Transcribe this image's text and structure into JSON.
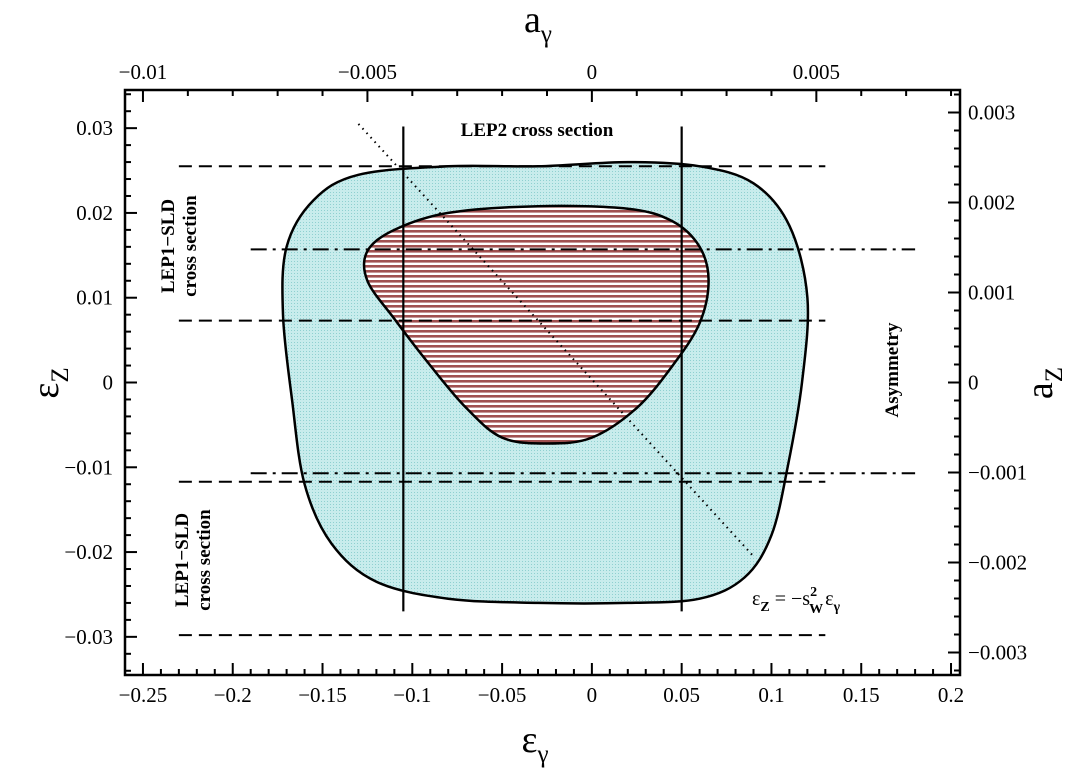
{
  "chart_data": {
    "type": "area",
    "axes": {
      "bottom": {
        "var": "ε",
        "sub": "γ",
        "range": [
          -0.26,
          0.205
        ],
        "ticks": [
          -0.25,
          -0.2,
          -0.15,
          -0.1,
          -0.05,
          0,
          0.05,
          0.1,
          0.15,
          0.2
        ],
        "tick_labels": [
          "−0.25",
          "−0.2",
          "−0.15",
          "−0.1",
          "−0.05",
          "0",
          "0.05",
          "0.1",
          "0.15",
          "0.2"
        ]
      },
      "left": {
        "var": "ε",
        "sub": "Z",
        "range": [
          -0.0345,
          0.0345
        ],
        "ticks": [
          -0.03,
          -0.02,
          -0.01,
          0,
          0.01,
          0.02,
          0.03
        ],
        "tick_labels": [
          "−0.03",
          "−0.02",
          "−0.01",
          "0",
          "0.01",
          "0.02",
          "0.03"
        ]
      },
      "top": {
        "var": "a",
        "sub": "γ",
        "range": [
          -0.0104,
          0.0082
        ],
        "ticks": [
          -0.01,
          -0.005,
          0,
          0.005
        ],
        "tick_labels": [
          "−0.01",
          "−0.005",
          "0",
          "0.005"
        ]
      },
      "right": {
        "var": "a",
        "sub": "Z",
        "range": [
          -0.00325,
          0.00325
        ],
        "ticks": [
          -0.003,
          -0.002,
          -0.001,
          0,
          0.001,
          0.002,
          0.003
        ],
        "tick_labels": [
          "−0.003",
          "−0.002",
          "−0.001",
          "0",
          "0.001",
          "0.002",
          "0.003"
        ]
      }
    },
    "regions": [
      {
        "name": "outer",
        "fill": "#c8ecec",
        "points": [
          [
            -0.03,
            0.0255
          ],
          [
            0.02,
            0.026
          ],
          [
            0.06,
            0.0255
          ],
          [
            0.09,
            0.0235
          ],
          [
            0.11,
            0.0185
          ],
          [
            0.12,
            0.01
          ],
          [
            0.117,
            0.0
          ],
          [
            0.109,
            -0.01
          ],
          [
            0.1,
            -0.018
          ],
          [
            0.085,
            -0.023
          ],
          [
            0.06,
            -0.0255
          ],
          [
            0.02,
            -0.026
          ],
          [
            -0.03,
            -0.026
          ],
          [
            -0.08,
            -0.0255
          ],
          [
            -0.12,
            -0.0235
          ],
          [
            -0.145,
            -0.019
          ],
          [
            -0.16,
            -0.012
          ],
          [
            -0.167,
            -0.002
          ],
          [
            -0.172,
            0.008
          ],
          [
            -0.17,
            0.016
          ],
          [
            -0.155,
            0.0215
          ],
          [
            -0.13,
            0.0245
          ],
          [
            -0.08,
            0.0255
          ]
        ]
      },
      {
        "name": "inner",
        "fill": "#a05050",
        "stripes": true,
        "points": [
          [
            -0.03,
            0.0208
          ],
          [
            0.02,
            0.0205
          ],
          [
            0.045,
            0.019
          ],
          [
            0.06,
            0.016
          ],
          [
            0.065,
            0.012
          ],
          [
            0.06,
            0.007
          ],
          [
            0.045,
            0.002
          ],
          [
            0.025,
            -0.003
          ],
          [
            0.0,
            -0.0065
          ],
          [
            -0.025,
            -0.0072
          ],
          [
            -0.05,
            -0.0065
          ],
          [
            -0.07,
            -0.003
          ],
          [
            -0.09,
            0.002
          ],
          [
            -0.11,
            0.0075
          ],
          [
            -0.125,
            0.012
          ],
          [
            -0.125,
            0.0155
          ],
          [
            -0.11,
            0.018
          ],
          [
            -0.08,
            0.02
          ]
        ]
      }
    ],
    "lines": [
      {
        "style": "dashed",
        "x": [
          -0.23,
          0.13
        ],
        "y": 0.0255
      },
      {
        "style": "dashed",
        "x": [
          -0.23,
          0.13
        ],
        "y": 0.0073
      },
      {
        "style": "dashed",
        "x": [
          -0.23,
          0.13
        ],
        "y": -0.0117
      },
      {
        "style": "dashed",
        "x": [
          -0.23,
          0.13
        ],
        "y": -0.0298
      },
      {
        "style": "dashdot",
        "x": [
          -0.19,
          0.18
        ],
        "y": 0.0157
      },
      {
        "style": "dashdot",
        "x": [
          -0.19,
          0.18
        ],
        "y": -0.0107
      },
      {
        "style": "solid-vertical",
        "x": -0.105,
        "y": [
          -0.027,
          0.0302
        ]
      },
      {
        "style": "solid-vertical",
        "x": 0.05,
        "y": [
          -0.027,
          0.0302
        ]
      },
      {
        "style": "dotted",
        "points": [
          [
            -0.13,
            0.0305
          ],
          [
            0.09,
            -0.0205
          ]
        ]
      }
    ],
    "annotations": {
      "lep2": "LEP2 cross section",
      "lep1_line1": "LEP1−SLD",
      "lep1_line2": "cross section",
      "asymmetry": "Asymmetry",
      "relation": {
        "lhs": "ε",
        "lhs_sub": "Z",
        "eq": " =  −s",
        "s_sup": "2",
        "s_sub": "W",
        "rhs": "ε",
        "rhs_sub": "γ"
      }
    },
    "grid": false
  }
}
